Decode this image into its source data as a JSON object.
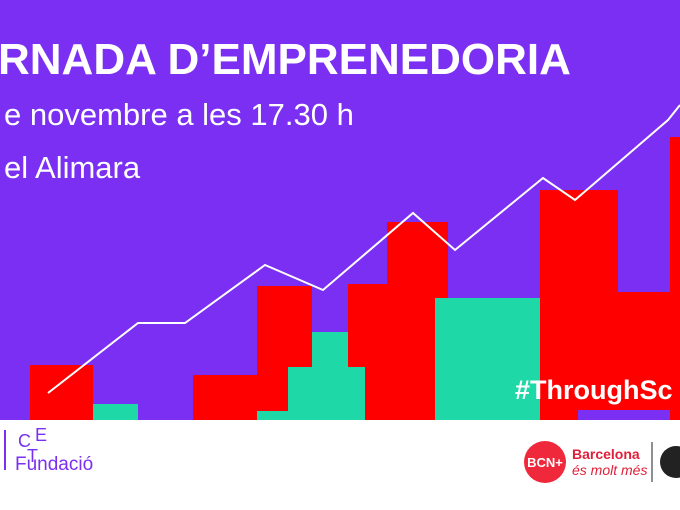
{
  "header": {
    "title": "RNADA D’EMPRENEDORIA",
    "date": "e novembre a les 17.30 h",
    "venue": "el Alimara"
  },
  "hashtag": "#ThroughSc",
  "footer": {
    "logo_letters": [
      "C",
      "E",
      "T"
    ],
    "fundacio": "Fundació",
    "bcn_badge": "BCN+",
    "barcelona": "Barcelona",
    "tagline": "és molt més"
  }
}
